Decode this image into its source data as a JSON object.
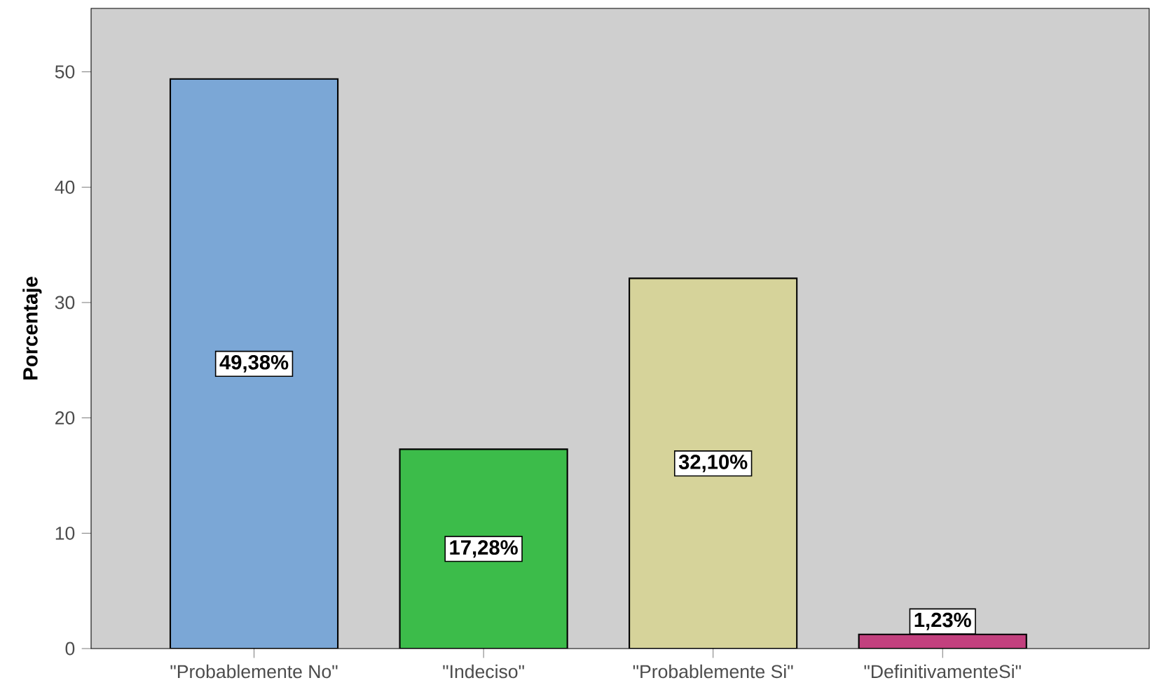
{
  "chart_data": {
    "type": "bar",
    "ylabel": "Porcentaje",
    "categories": [
      "\"Probablemente No\"",
      "\"Indeciso\"",
      "\"Probablemente Si\"",
      "\"DefinitivamenteSi\""
    ],
    "values": [
      49.38,
      17.28,
      32.1,
      1.23
    ],
    "colors": [
      "#7ba7d6",
      "#3cbc4a",
      "#d6d39a",
      "#c2407e"
    ],
    "value_labels": [
      "49,38%",
      "17,28%",
      "32,10%",
      "1,23%"
    ],
    "ylim": [
      0,
      55.5
    ],
    "yticks": [
      0,
      10,
      20,
      30,
      40,
      50
    ],
    "grid": false
  }
}
